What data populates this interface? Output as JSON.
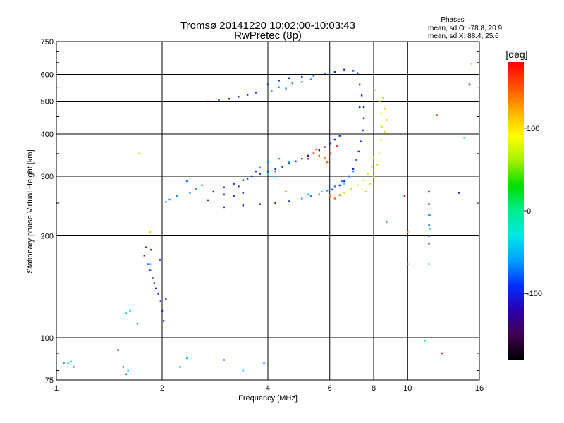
{
  "chart_data": {
    "type": "scatter",
    "title": "Tromsø 20141220 10:02:00-10:03:43",
    "subtitle": "RwPretec (8p)",
    "xlabel": "Frequency [MHz]",
    "ylabel": "Stationary phase Virtual Height [km]",
    "x_scale": "log",
    "y_scale": "log",
    "xlim": [
      1,
      16
    ],
    "ylim": [
      75,
      750
    ],
    "x_ticks": [
      1,
      2,
      4,
      6,
      8,
      10,
      16
    ],
    "y_ticks": [
      75,
      100,
      200,
      300,
      400,
      500,
      600,
      750
    ],
    "grid": true,
    "stats": {
      "heading": "Phases",
      "line1": "mean, sd,O: -78.8, 20.9",
      "line2": "mean, sd,X:  88.4, 25.6"
    },
    "colorbar": {
      "label": "[deg]",
      "range": [
        -180,
        180
      ],
      "ticks": [
        {
          "value": 100,
          "label": "100"
        },
        {
          "value": 0,
          "label": "0"
        },
        {
          "value": -100,
          "label": "-100"
        }
      ],
      "colors": [
        "#000000",
        "#400050",
        "#2a00b0",
        "#0030ff",
        "#00a0ff",
        "#00e8e8",
        "#00ee90",
        "#00dd00",
        "#a0f000",
        "#ffff00",
        "#ffb000",
        "#ff5000",
        "#ff0000"
      ]
    },
    "series": [
      {
        "color": "#0a2fd8",
        "points": [
          [
            2.7,
            499
          ],
          [
            2.9,
            503
          ],
          [
            3.1,
            508
          ],
          [
            3.3,
            515
          ],
          [
            3.5,
            522
          ],
          [
            3.7,
            530
          ],
          [
            4.0,
            560
          ],
          [
            4.3,
            575
          ],
          [
            4.6,
            585
          ],
          [
            5.0,
            590
          ],
          [
            5.4,
            595
          ],
          [
            5.8,
            602
          ],
          [
            6.2,
            610
          ],
          [
            6.6,
            620
          ],
          [
            7.0,
            615
          ],
          [
            2.8,
            270
          ],
          [
            3.0,
            278
          ],
          [
            3.2,
            285
          ],
          [
            3.4,
            292
          ],
          [
            3.6,
            300
          ],
          [
            3.8,
            305
          ],
          [
            4.0,
            310
          ],
          [
            4.2,
            315
          ],
          [
            4.4,
            320
          ],
          [
            4.6,
            328
          ],
          [
            4.8,
            332
          ],
          [
            5.0,
            338
          ],
          [
            5.2,
            345
          ],
          [
            5.4,
            350
          ],
          [
            5.6,
            358
          ],
          [
            5.8,
            366
          ],
          [
            6.0,
            375
          ],
          [
            6.2,
            385
          ],
          [
            6.4,
            395
          ],
          [
            3.3,
            280
          ],
          [
            3.5,
            295
          ],
          [
            3.7,
            310
          ],
          [
            2.7,
            255
          ],
          [
            3.0,
            265
          ],
          [
            3.2,
            262
          ],
          [
            3.4,
            268
          ],
          [
            7.2,
            605
          ],
          [
            7.3,
            560
          ],
          [
            7.4,
            520
          ],
          [
            7.5,
            480
          ],
          [
            7.5,
            445
          ],
          [
            7.45,
            410
          ],
          [
            7.35,
            380
          ],
          [
            7.25,
            355
          ],
          [
            7.15,
            335
          ],
          [
            7.0,
            315
          ],
          [
            6.8,
            300
          ],
          [
            6.6,
            290
          ],
          [
            6.4,
            282
          ],
          [
            6.1,
            274
          ],
          [
            3.0,
            243
          ],
          [
            3.4,
            246
          ],
          [
            3.8,
            248
          ],
          [
            4.2,
            250
          ],
          [
            4.6,
            253
          ],
          [
            1.78,
            175
          ],
          [
            1.82,
            165
          ],
          [
            1.85,
            158
          ],
          [
            1.88,
            150
          ],
          [
            1.9,
            145
          ],
          [
            1.92,
            140
          ],
          [
            1.95,
            135
          ],
          [
            1.98,
            128
          ],
          [
            2.0,
            120
          ],
          [
            2.02,
            112
          ],
          [
            1.8,
            185
          ],
          [
            1.86,
            182
          ],
          [
            2.05,
            130
          ],
          [
            1.97,
            170
          ],
          [
            11.5,
            270
          ],
          [
            11.5,
            248
          ],
          [
            11.5,
            230
          ],
          [
            11.5,
            215
          ],
          [
            11.5,
            200
          ],
          [
            11.5,
            190
          ],
          [
            14.0,
            268
          ],
          [
            7.3,
            480
          ],
          [
            1.5,
            92
          ]
        ]
      },
      {
        "color": "#1c8cff",
        "points": [
          [
            4.1,
            535
          ],
          [
            4.3,
            550
          ],
          [
            4.5,
            545
          ],
          [
            4.7,
            565
          ],
          [
            5.0,
            570
          ],
          [
            5.3,
            580
          ],
          [
            2.2,
            262
          ],
          [
            2.4,
            268
          ],
          [
            2.5,
            275
          ],
          [
            2.6,
            282
          ],
          [
            2.35,
            290
          ],
          [
            2.1,
            256
          ],
          [
            2.05,
            252
          ],
          [
            4.0,
            330
          ],
          [
            4.3,
            338
          ],
          [
            4.6,
            330
          ],
          [
            4.2,
            310
          ],
          [
            3.8,
            318
          ],
          [
            5.0,
            258
          ],
          [
            5.3,
            262
          ],
          [
            5.6,
            265
          ],
          [
            5.9,
            272
          ],
          [
            6.2,
            280
          ],
          [
            6.5,
            290
          ],
          [
            6.8,
            300
          ],
          [
            7.0,
            310
          ],
          [
            1.05,
            84
          ],
          [
            1.12,
            82
          ],
          [
            1.55,
            82
          ],
          [
            1.58,
            78
          ],
          [
            2.25,
            82
          ],
          [
            3.0,
            86
          ],
          [
            3.9,
            84
          ],
          [
            10.0,
            165
          ],
          [
            8.7,
            220
          ],
          [
            1.7,
            110
          ]
        ]
      },
      {
        "color": "#10d8f0",
        "points": [
          [
            1.08,
            84
          ],
          [
            1.1,
            85
          ],
          [
            1.6,
            80
          ],
          [
            1.62,
            120
          ],
          [
            1.58,
            118
          ],
          [
            2.35,
            87
          ],
          [
            4.0,
            305
          ],
          [
            4.2,
            300
          ],
          [
            5.2,
            265
          ],
          [
            5.7,
            270
          ],
          [
            6.6,
            285
          ],
          [
            11.6,
            230
          ],
          [
            11.6,
            210
          ],
          [
            11.5,
            165
          ],
          [
            14.5,
            390
          ],
          [
            1.85,
            165
          ],
          [
            11.2,
            98
          ],
          [
            3.4,
            80
          ]
        ]
      },
      {
        "color": "#c8f000",
        "points": [
          [
            7.6,
            270
          ],
          [
            7.8,
            285
          ],
          [
            8.0,
            300
          ],
          [
            8.2,
            325
          ],
          [
            8.3,
            350
          ],
          [
            8.4,
            385
          ],
          [
            8.45,
            420
          ],
          [
            8.4,
            460
          ],
          [
            8.3,
            500
          ],
          [
            8.1,
            540
          ],
          [
            6.6,
            268
          ],
          [
            6.9,
            275
          ],
          [
            7.2,
            282
          ],
          [
            7.5,
            292
          ],
          [
            7.7,
            305
          ],
          [
            7.9,
            320
          ],
          [
            8.0,
            340
          ]
        ]
      },
      {
        "color": "#ffd000",
        "points": [
          [
            8.6,
            405
          ],
          [
            8.7,
            440
          ],
          [
            8.6,
            475
          ],
          [
            8.5,
            512
          ],
          [
            1.72,
            350
          ],
          [
            1.85,
            205
          ],
          [
            15.2,
            645
          ]
        ]
      },
      {
        "color": "#ff6a00",
        "points": [
          [
            5.4,
            352
          ],
          [
            5.6,
            345
          ],
          [
            5.8,
            340
          ],
          [
            6.0,
            262
          ],
          [
            6.2,
            258
          ],
          [
            6.4,
            264
          ],
          [
            5.9,
            330
          ],
          [
            12.1,
            455
          ],
          [
            10.0,
            205
          ],
          [
            15.0,
            560
          ],
          [
            4.5,
            270
          ]
        ]
      },
      {
        "color": "#ff1010",
        "points": [
          [
            5.2,
            338
          ],
          [
            5.5,
            360
          ],
          [
            6.0,
            350
          ],
          [
            9.8,
            262
          ],
          [
            15.0,
            560
          ],
          [
            12.5,
            90
          ],
          [
            6.3,
            368
          ]
        ]
      }
    ]
  }
}
